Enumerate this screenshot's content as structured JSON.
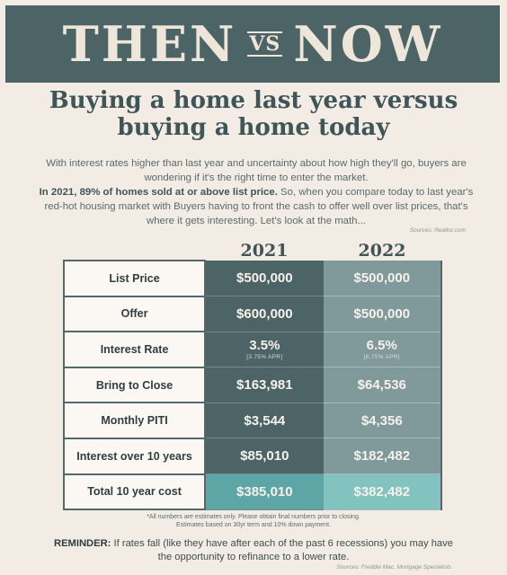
{
  "banner": {
    "left": "THEN",
    "vs": "VS",
    "right": "NOW"
  },
  "headline": {
    "line1": "Buying a home last year versus",
    "line2": "buying a home today"
  },
  "intro": {
    "paragraph1": "With interest rates higher than last year and uncertainty about how high they'll go, buyers are wondering if it's the right time to enter the market.",
    "paragraph2_bold": "In 2021, 89% of homes sold at or above list price.",
    "paragraph2_rest": " So, when you compare today to last year's red-hot housing market with Buyers having to front the cash to offer well over list prices, that's where it gets interesting. Let's look at the math...",
    "source": "Sources: Realtor.com"
  },
  "years": {
    "col1": "2021",
    "col2": "2022"
  },
  "table": {
    "rows": [
      {
        "label": "List Price",
        "v2021": "$500,000",
        "v2022": "$500,000"
      },
      {
        "label": "Offer",
        "v2021": "$600,000",
        "v2022": "$500,000"
      },
      {
        "label": "Interest Rate",
        "v2021": "3.5%",
        "v2021_sub": "[3.75% APR]",
        "v2022": "6.5%",
        "v2022_sub": "[6.75% APR]"
      },
      {
        "label": "Bring to Close",
        "v2021": "$163,981",
        "v2022": "$64,536"
      },
      {
        "label": "Monthly PITI",
        "v2021": "$3,544",
        "v2022": "$4,356"
      },
      {
        "label": "Interest over 10 years",
        "v2021": "$85,010",
        "v2022": "$182,482"
      },
      {
        "label": "Total 10 year cost",
        "v2021": "$385,010",
        "v2022": "$382,482"
      }
    ]
  },
  "footnote": {
    "line1": "*All numbers are estimates only. Please obtain final numbers prior to closing.",
    "line2": "Estimates based on 30yr term and 10% down payment."
  },
  "reminder": {
    "label": "REMINDER:",
    "text": " If rates fall (like they have after each of the past 6 recessions) you may have the opportunity to refinance to a lower rate.",
    "source": "Sources: Freddie Mac, Mortgage Specialists"
  },
  "colors": {
    "dark_teal": "#4d6467",
    "mid_teal": "#80999a",
    "total_2021": "#5ea6a6",
    "total_2022": "#82c3c0",
    "background": "#f2ece5"
  }
}
